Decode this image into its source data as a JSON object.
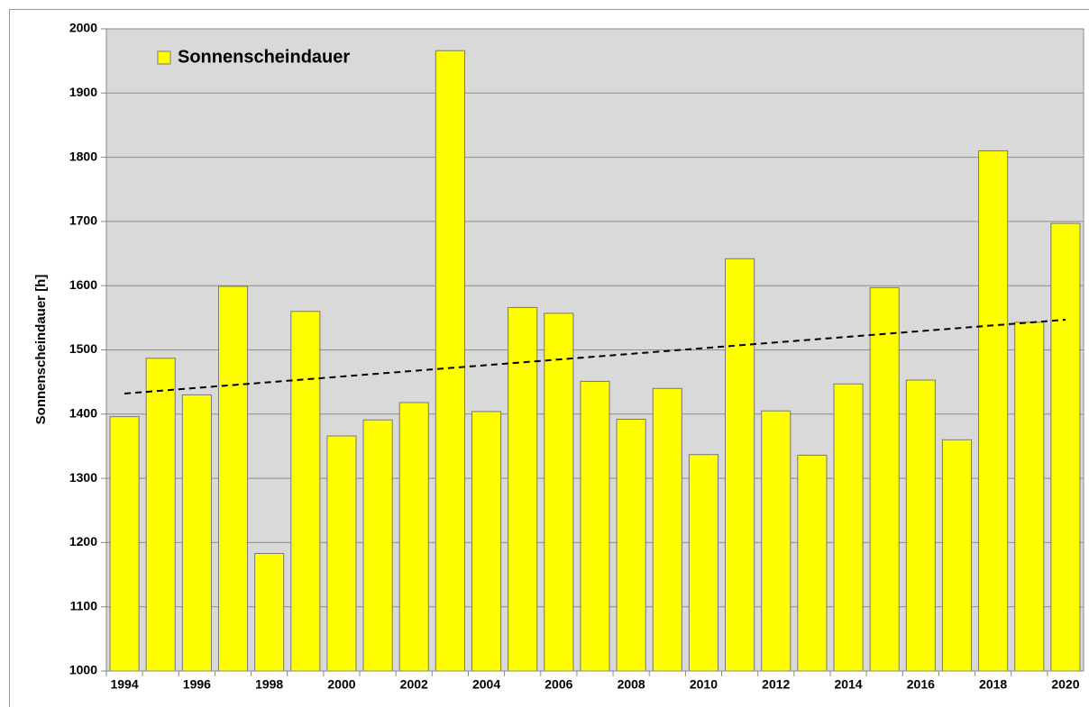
{
  "chart_data": {
    "type": "bar",
    "y_label": "Sonnenscheindauer [h]",
    "categories": [
      "1994",
      null,
      "1996",
      null,
      "1998",
      null,
      "2000",
      null,
      "2002",
      null,
      "2004",
      null,
      "2006",
      null,
      "2008",
      null,
      "2010",
      null,
      "2012",
      null,
      "2014",
      null,
      "2016",
      null,
      "2018",
      null,
      "2020"
    ],
    "series": [
      {
        "name": "Sonnenscheindauer",
        "color": "#ffff00",
        "values": [
          1396,
          1487,
          1430,
          1599,
          1183,
          1560,
          1366,
          1391,
          1418,
          1966,
          1404,
          1566,
          1557,
          1451,
          1392,
          1440,
          1337,
          1642,
          1405,
          1336,
          1447,
          1597,
          1453,
          1360,
          1810,
          1543,
          1697
        ]
      }
    ],
    "trendline_values": [
      1432,
      1547
    ],
    "ylim": [
      1000,
      2000
    ],
    "yticks": [
      1000,
      1100,
      1200,
      1300,
      1400,
      1500,
      1600,
      1700,
      1800,
      1900,
      2000
    ],
    "grid": true,
    "legend": "upper left"
  }
}
